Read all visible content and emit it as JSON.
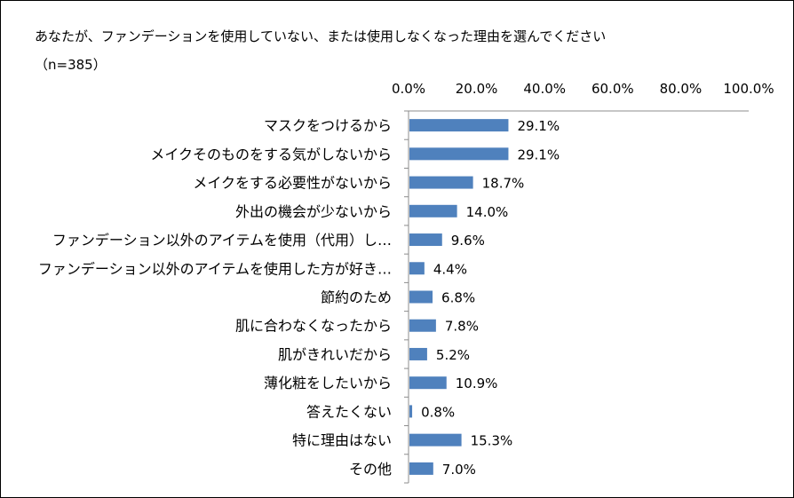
{
  "chart_data": {
    "type": "bar",
    "orientation": "horizontal",
    "title": "あなたが、ファンデーションを使用していない、または使用しなくなった理由を選んでください（n=385）",
    "categories": [
      "マスクをつけるから",
      "メイクそのものをする気がしないから",
      "メイクをする必要性がないから",
      "外出の機会が少ないから",
      "ファンデーション以外のアイテムを使用（代用）し…",
      "ファンデーション以外のアイテムを使用した方が好き…",
      "節約のため",
      "肌に合わなくなったから",
      "肌がきれいだから",
      "薄化粧をしたいから",
      "答えたくない",
      "特に理由はない",
      "その他"
    ],
    "values": [
      29.1,
      29.1,
      18.7,
      14.0,
      9.6,
      4.4,
      6.8,
      7.8,
      5.2,
      10.9,
      0.8,
      15.3,
      7.0
    ],
    "value_labels": [
      "29.1%",
      "29.1%",
      "18.7%",
      "14.0%",
      "9.6%",
      "4.4%",
      "6.8%",
      "7.8%",
      "5.2%",
      "10.9%",
      "0.8%",
      "15.3%",
      "7.0%"
    ],
    "xlim": [
      0,
      100
    ],
    "xticks": [
      "0.0%",
      "20.0%",
      "40.0%",
      "60.0%",
      "80.0%",
      "100.0%"
    ],
    "axis_position": "top",
    "grid": false,
    "bar_color": "#4f81bd"
  }
}
